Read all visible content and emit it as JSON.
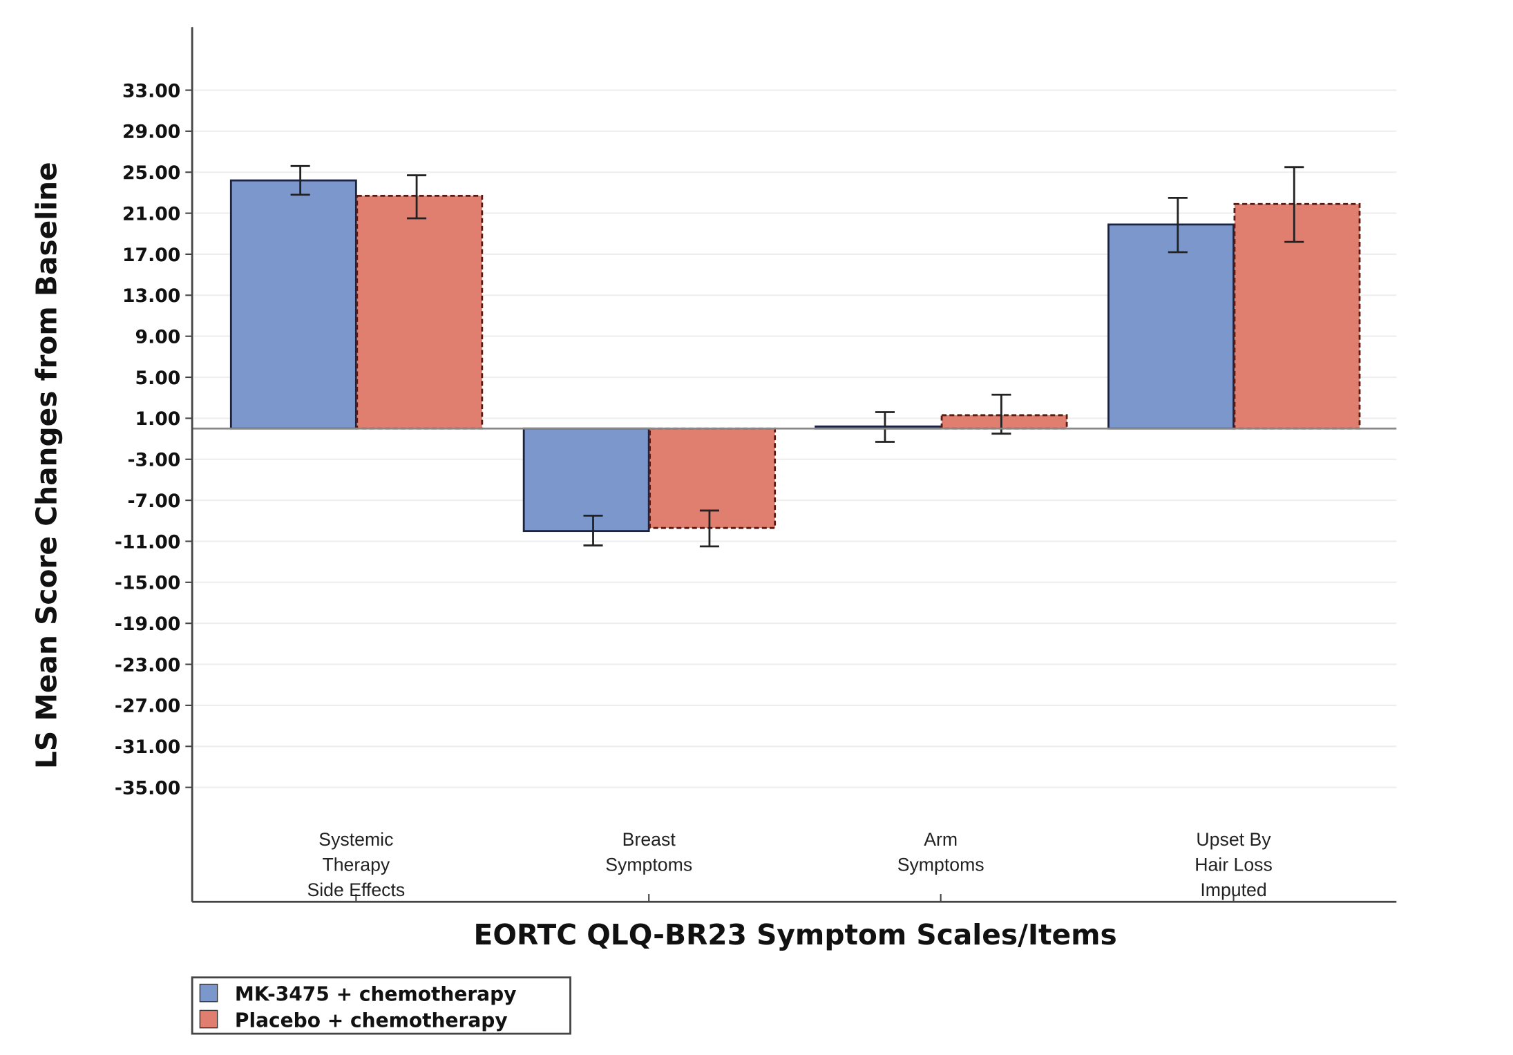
{
  "chart_data": {
    "type": "bar",
    "title": "",
    "xlabel": "EORTC QLQ-BR23 Symptom Scales/Items",
    "ylabel": "LS Mean Score Changes from Baseline",
    "ylim": [
      -35,
      33
    ],
    "yticks": [
      33,
      29,
      25,
      21,
      17,
      13,
      9,
      5,
      1,
      -3,
      -7,
      -11,
      -15,
      -19,
      -23,
      -27,
      -31,
      -35
    ],
    "ytick_labels": [
      "33.00",
      "29.00",
      "25.00",
      "21.00",
      "17.00",
      "13.00",
      "9.00",
      "5.00",
      "1.00",
      "-3.00",
      "-7.00",
      "-11.00",
      "-15.00",
      "-19.00",
      "-23.00",
      "-27.00",
      "-31.00",
      "-35.00"
    ],
    "grid": true,
    "legend_placement": "bottom-left",
    "categories": [
      [
        "Systemic",
        "Therapy",
        "Side Effects"
      ],
      [
        "Breast",
        "Symptoms"
      ],
      [
        "Arm",
        "Symptoms"
      ],
      [
        "Upset By",
        "Hair Loss",
        "Imputed"
      ]
    ],
    "series": [
      {
        "name": "MK-3475 + chemotherapy",
        "color": "#7b97cc",
        "border": "solid",
        "values": [
          24.2,
          -10.0,
          0.2,
          19.9
        ],
        "error_upper": [
          25.6,
          -8.5,
          1.6,
          22.5
        ],
        "error_lower": [
          22.8,
          -11.4,
          -1.3,
          17.2
        ]
      },
      {
        "name": "Placebo + chemotherapy",
        "color": "#e07f6f",
        "border": "dashed",
        "values": [
          22.7,
          -9.7,
          1.3,
          21.9
        ],
        "error_upper": [
          24.7,
          -8.0,
          3.3,
          25.5
        ],
        "error_lower": [
          20.5,
          -11.5,
          -0.5,
          18.2
        ]
      }
    ]
  }
}
